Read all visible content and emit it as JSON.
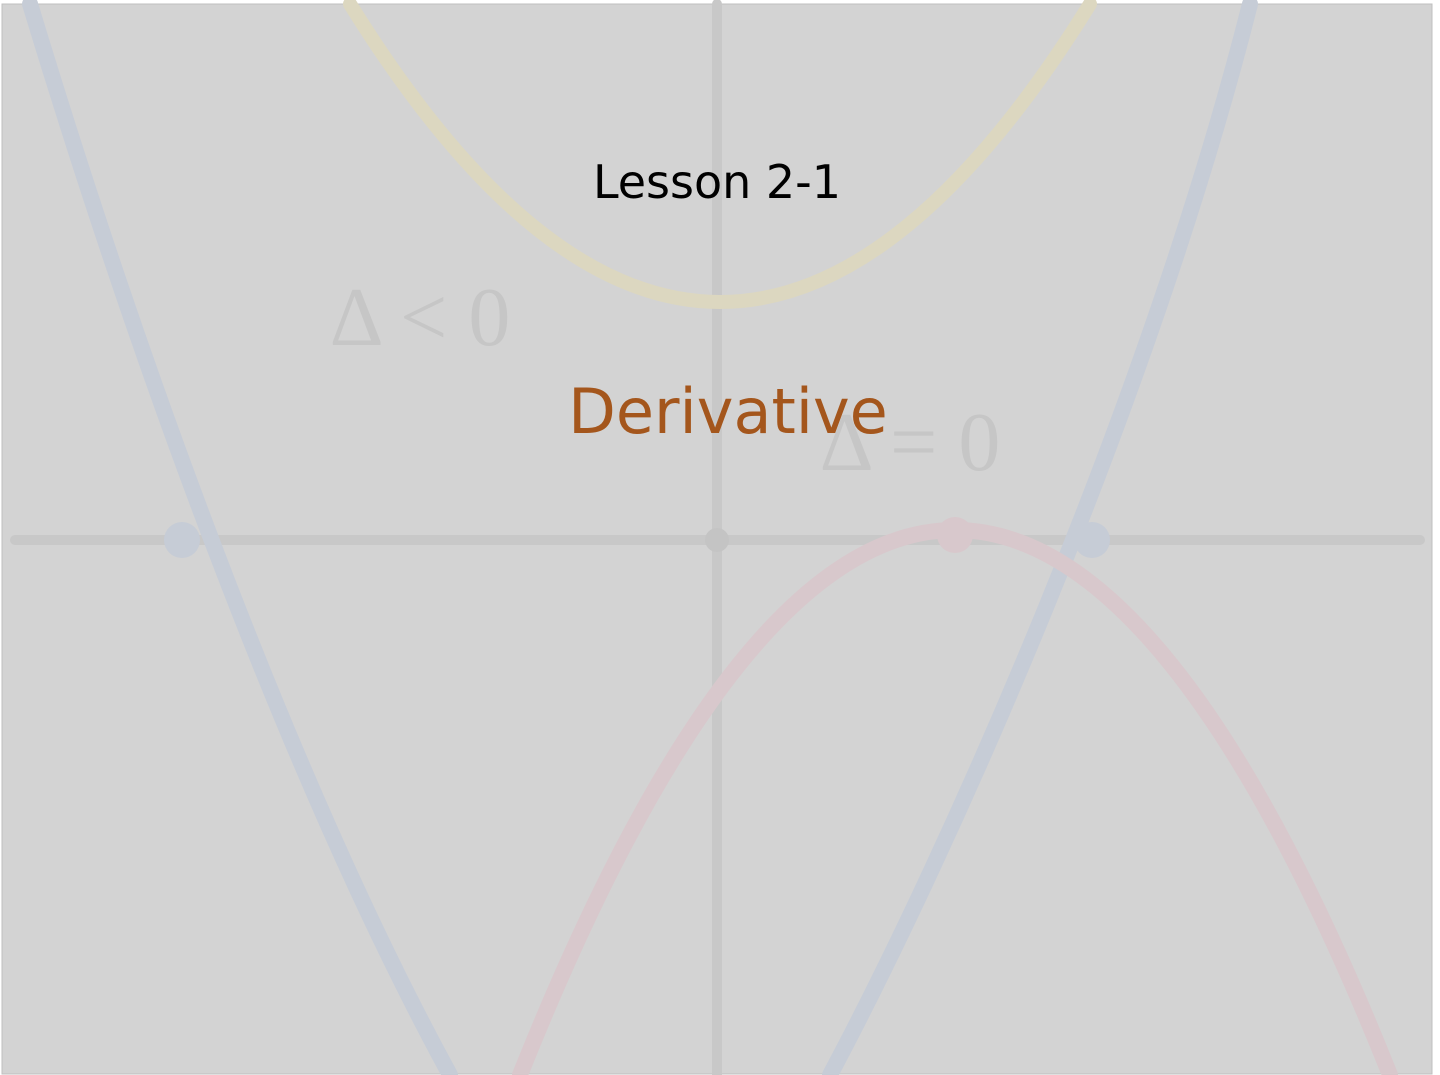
{
  "slide": {
    "title": "Lesson 2-1",
    "subtitle": "Derivative",
    "background_labels": [
      "Δ < 0",
      "Δ = 0"
    ]
  }
}
